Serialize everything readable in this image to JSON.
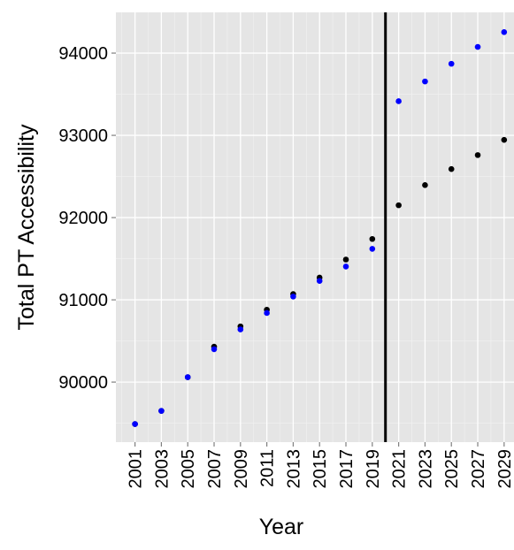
{
  "chart_data": {
    "type": "scatter",
    "x_label": "Year",
    "y_label": "Total PT Accessibility",
    "x": [
      2001,
      2003,
      2005,
      2007,
      2009,
      2011,
      2013,
      2015,
      2017,
      2019,
      2021,
      2023,
      2025,
      2027,
      2029
    ],
    "series": [
      {
        "color": "#000000",
        "values": [
          89490,
          89650,
          90060,
          90430,
          90677,
          90880,
          91070,
          91270,
          91490,
          91740,
          92150,
          92395,
          92590,
          92760,
          92945
        ]
      },
      {
        "color": "#0000ff",
        "values": [
          89490,
          89650,
          90060,
          90400,
          90640,
          90840,
          91040,
          91230,
          91405,
          91620,
          93415,
          93655,
          93870,
          94075,
          94255
        ]
      }
    ],
    "vline": 2020,
    "xlim": [
      1999.55,
      2029.75
    ],
    "ylim": [
      89270,
      94495
    ],
    "xticks": [
      2001,
      2003,
      2005,
      2007,
      2009,
      2011,
      2013,
      2015,
      2017,
      2019,
      2021,
      2023,
      2025,
      2027,
      2029
    ],
    "yticks": [
      90000,
      91000,
      92000,
      93000,
      94000
    ],
    "xminor": [
      2000,
      2002,
      2004,
      2006,
      2008,
      2010,
      2012,
      2014,
      2016,
      2018,
      2020,
      2022,
      2024,
      2026,
      2028
    ],
    "yminor": [
      89500,
      90500,
      91500,
      92500,
      93500
    ],
    "grid": true,
    "background": "#e5e5e5"
  }
}
